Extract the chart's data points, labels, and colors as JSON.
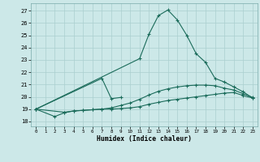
{
  "bg_color": "#cce8e8",
  "grid_color": "#aacfcf",
  "line_color": "#1a6b5a",
  "xlabel": "Humidex (Indice chaleur)",
  "ylabel_ticks": [
    18,
    19,
    20,
    21,
    22,
    23,
    24,
    25,
    26,
    27
  ],
  "xlim": [
    -0.5,
    23.5
  ],
  "ylim": [
    17.6,
    27.6
  ],
  "line1_x": [
    0,
    2,
    3,
    4,
    5,
    6,
    7,
    8,
    9,
    10,
    11,
    12,
    13,
    14,
    15,
    16,
    17,
    18,
    19,
    20,
    21,
    22,
    23
  ],
  "line1_y": [
    19.0,
    18.4,
    18.7,
    18.85,
    18.9,
    18.95,
    19.0,
    19.0,
    19.05,
    19.1,
    19.2,
    19.4,
    19.55,
    19.7,
    19.8,
    19.9,
    20.0,
    20.1,
    20.2,
    20.3,
    20.35,
    20.1,
    19.9
  ],
  "line2_x": [
    0,
    3,
    4,
    5,
    6,
    7,
    8,
    9,
    10,
    11,
    12,
    13,
    14,
    15,
    16,
    17,
    18,
    19,
    20,
    21,
    22,
    23
  ],
  "line2_y": [
    19.0,
    18.75,
    18.85,
    18.9,
    18.95,
    19.0,
    19.1,
    19.3,
    19.5,
    19.8,
    20.15,
    20.45,
    20.65,
    20.8,
    20.9,
    20.95,
    20.95,
    20.9,
    20.7,
    20.55,
    20.25,
    19.95
  ],
  "line3_x": [
    0,
    7,
    8,
    9
  ],
  "line3_y": [
    19.0,
    21.5,
    19.85,
    19.95
  ],
  "line4_x": [
    0,
    11,
    12,
    13,
    14,
    15,
    16,
    17,
    18,
    19,
    20,
    21,
    22,
    23
  ],
  "line4_y": [
    19.0,
    23.1,
    25.1,
    26.6,
    27.05,
    26.25,
    25.0,
    23.5,
    22.8,
    21.5,
    21.2,
    20.8,
    20.4,
    19.9
  ]
}
